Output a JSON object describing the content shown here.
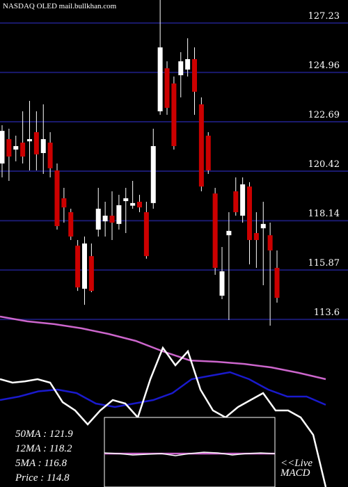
{
  "chart_data": {
    "type": "candlestick",
    "title": "NASDAQ OLED mail.bullkhan.com",
    "ylim": [
      105.89,
      128.29
    ],
    "yticks": [
      127.23,
      124.96,
      122.69,
      120.42,
      118.14,
      115.87,
      113.6
    ],
    "grid": true,
    "grid_color": "#1a1a6e",
    "up_color": "#ffffff",
    "down_color": "#cc0000",
    "candles": {
      "open": [
        120.77,
        121.89,
        121.41,
        121.73,
        121.79,
        122.21,
        121.25,
        121.73,
        120.45,
        119.17,
        118.53,
        116.99,
        115.01,
        116.51,
        117.73,
        118.11,
        118.37,
        117.99,
        119.04,
        118.83,
        119.01,
        118.53,
        118.95,
        123.17,
        125.15,
        124.45,
        124.83,
        125.09,
        125.57,
        123.49,
        122.05,
        119.39,
        114.69,
        117.47,
        119.49,
        118.37,
        119.71,
        117.57,
        117.79,
        117.47,
        115.97
      ],
      "close": [
        122.27,
        121.09,
        121.57,
        121.09,
        121.89,
        121.19,
        121.89,
        120.55,
        117.89,
        118.75,
        117.41,
        115.07,
        117.09,
        114.91,
        118.69,
        118.37,
        118.05,
        118.85,
        119.17,
        118.95,
        118.75,
        116.51,
        121.57,
        126.11,
        123.33,
        121.57,
        125.47,
        125.57,
        124.07,
        119.71,
        120.45,
        115.97,
        115.81,
        117.67,
        118.53,
        119.81,
        117.25,
        117.25,
        117.99,
        116.77,
        114.59
      ],
      "high": [
        122.53,
        122.37,
        122.05,
        123.17,
        123.65,
        123.17,
        123.49,
        122.21,
        120.77,
        119.65,
        118.69,
        117.25,
        117.41,
        117.09,
        119.65,
        119.01,
        119.49,
        119.33,
        119.65,
        119.97,
        119.33,
        119.01,
        122.37,
        128.29,
        125.47,
        124.77,
        125.89,
        126.53,
        126.11,
        123.81,
        122.21,
        119.65,
        116.93,
        118.53,
        120.13,
        120.13,
        119.91,
        118.53,
        119.01,
        118.05,
        116.77
      ],
      "low": [
        120.13,
        119.97,
        120.87,
        120.77,
        120.45,
        120.45,
        120.29,
        120.13,
        117.73,
        118.05,
        117.25,
        114.91,
        114.27,
        114.85,
        117.41,
        117.41,
        117.25,
        117.73,
        117.57,
        118.69,
        118.53,
        116.39,
        118.69,
        123.01,
        123.01,
        121.41,
        123.81,
        124.77,
        123.01,
        119.49,
        120.29,
        115.65,
        114.53,
        113.57,
        118.37,
        118.05,
        116.13,
        115.97,
        115.17,
        113.31,
        114.37
      ]
    },
    "lines": [
      {
        "color": "#cc66cc",
        "values": [
          113.73,
          113.51,
          113.38,
          113.19,
          112.93,
          112.61,
          112.13,
          111.71,
          111.65,
          111.55,
          111.39,
          111.14,
          110.85
        ]
      },
      {
        "color": "#1a1acc",
        "values": [
          109.89,
          110.05,
          110.29,
          110.37,
          110.21,
          109.73,
          109.57,
          109.73,
          109.89,
          110.21,
          110.85,
          111.01,
          111.17,
          110.85,
          110.37,
          110.05,
          110.05,
          109.67
        ]
      },
      {
        "color": "#ffffff",
        "values": [
          110.85,
          110.69,
          110.75,
          110.85,
          110.69,
          109.79,
          109.41,
          108.77,
          109.41,
          109.89,
          109.73,
          109.09,
          110.85,
          112.29,
          111.49,
          112.13,
          110.37,
          109.41,
          109.09,
          109.57,
          109.89,
          110.21,
          109.41,
          109.41,
          109.09,
          108.29,
          105.89
        ]
      }
    ],
    "macd": {
      "ylim": [
        -1,
        1
      ],
      "label": "<<Live\nMACD",
      "series": [
        {
          "color": "#cc66cc",
          "values": [
            0,
            0,
            0,
            0,
            0,
            0,
            0,
            0,
            0,
            0,
            0,
            0,
            0
          ]
        },
        {
          "color": "#ffffff",
          "values": [
            0.05,
            0,
            -0.1,
            -0.05,
            0,
            -0.15,
            0,
            0.1,
            0.05,
            -0.1,
            0,
            0.05,
            0
          ]
        }
      ]
    },
    "indicators": [
      "50MA : 121.9",
      "12MA : 118.2",
      "5MA : 116.8",
      "Price  : 114.8"
    ]
  }
}
